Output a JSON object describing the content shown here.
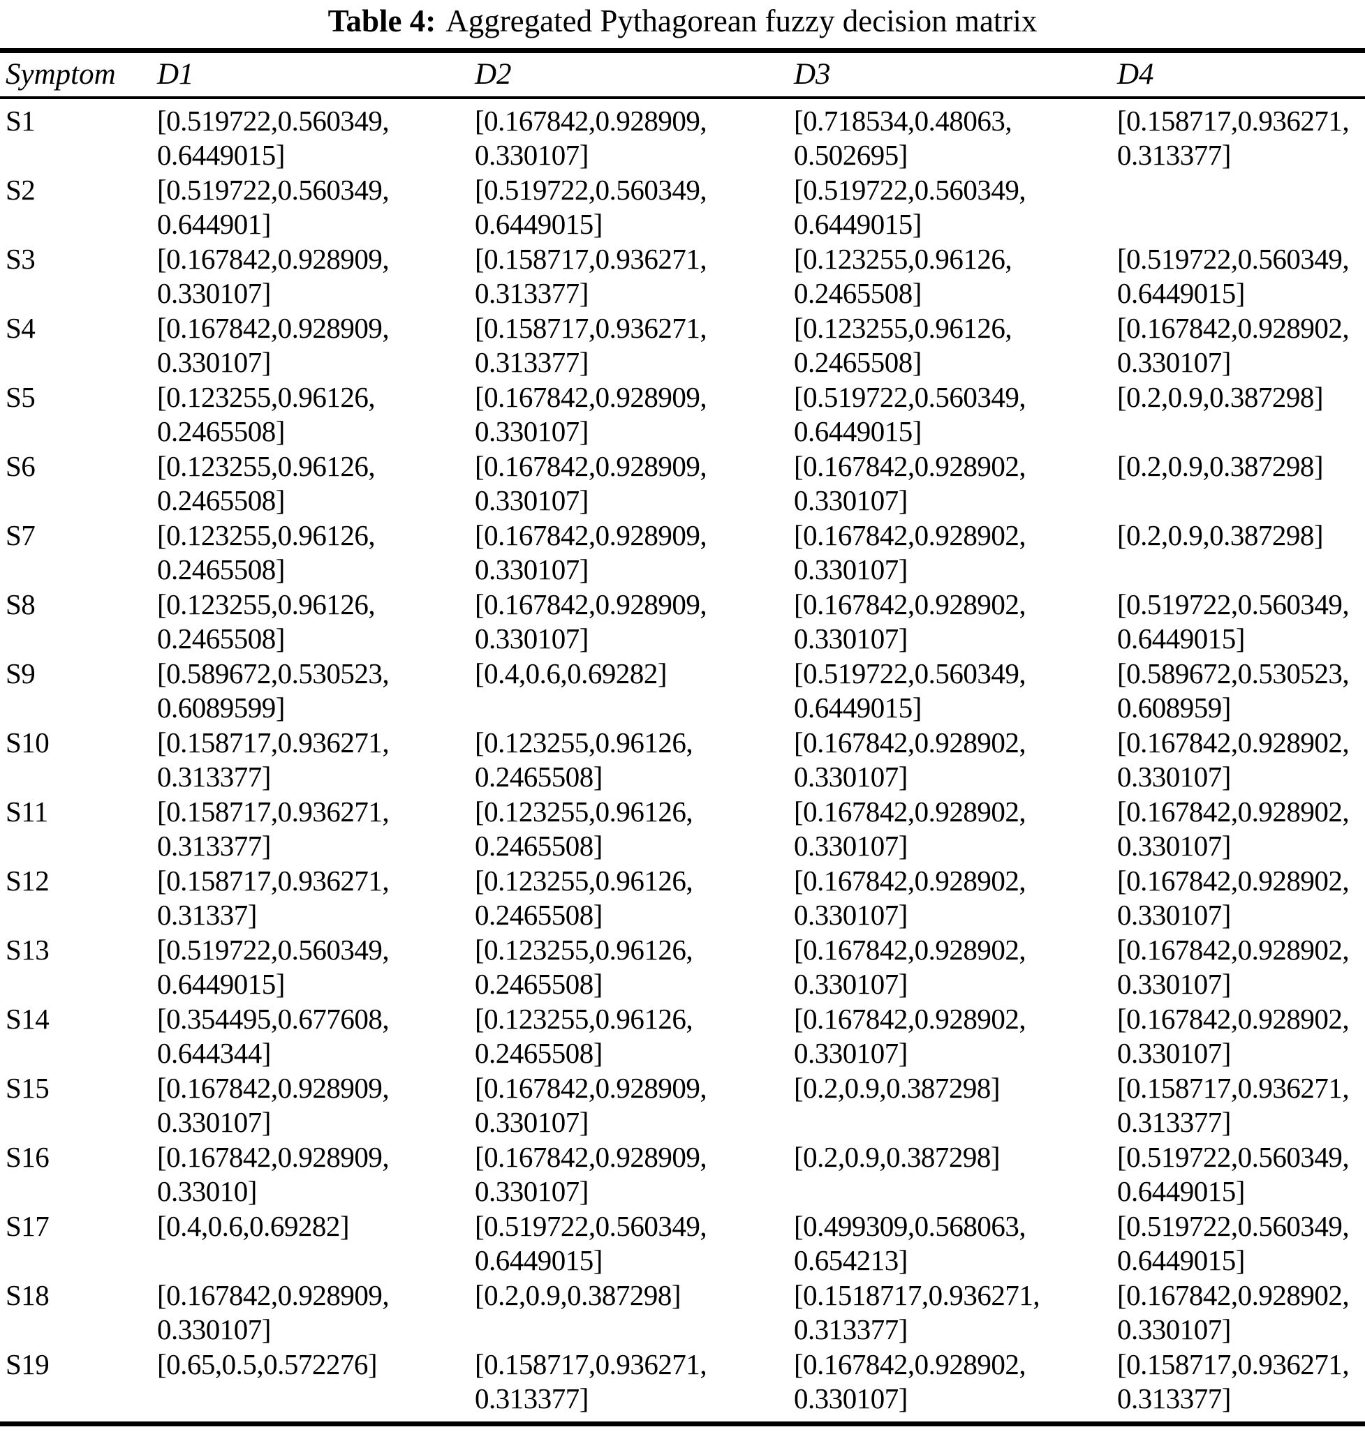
{
  "caption": {
    "label": "Table 4:",
    "text": "Aggregated Pythagorean fuzzy decision matrix"
  },
  "colors": {
    "text": "#000000",
    "background": "#ffffff",
    "rule": "#000000"
  },
  "table": {
    "columns": [
      "Symptom",
      "D1",
      "D2",
      "D3",
      "D4"
    ],
    "rows": [
      {
        "symptom": "S1",
        "d1": [
          "[0.519722,0.560349,",
          "0.6449015]"
        ],
        "d2": [
          "[0.167842,0.928909,",
          "0.330107]"
        ],
        "d3": [
          "[0.718534,0.48063,",
          "0.502695]"
        ],
        "d4": [
          "[0.158717,0.936271,",
          "0.313377]"
        ]
      },
      {
        "symptom": "S2",
        "d1": [
          "[0.519722,0.560349,",
          "0.644901]"
        ],
        "d2": [
          "[0.519722,0.560349,",
          "0.6449015]"
        ],
        "d3": [
          "[0.519722,0.560349,",
          "0.6449015]"
        ],
        "d4": []
      },
      {
        "symptom": "S3",
        "d1": [
          "[0.167842,0.928909,",
          "0.330107]"
        ],
        "d2": [
          "[0.158717,0.936271,",
          "0.313377]"
        ],
        "d3": [
          "[0.123255,0.96126,",
          "0.2465508]"
        ],
        "d4": [
          "[0.519722,0.560349,",
          "0.6449015]"
        ]
      },
      {
        "symptom": "S4",
        "d1": [
          "[0.167842,0.928909,",
          "0.330107]"
        ],
        "d2": [
          "[0.158717,0.936271,",
          "0.313377]"
        ],
        "d3": [
          "[0.123255,0.96126,",
          "0.2465508]"
        ],
        "d4": [
          "[0.167842,0.928902,",
          "0.330107]"
        ]
      },
      {
        "symptom": "S5",
        "d1": [
          "[0.123255,0.96126,",
          "0.2465508]"
        ],
        "d2": [
          "[0.167842,0.928909,",
          "0.330107]"
        ],
        "d3": [
          "[0.519722,0.560349,",
          "0.6449015]"
        ],
        "d4": [
          "[0.2,0.9,0.387298]"
        ]
      },
      {
        "symptom": "S6",
        "d1": [
          "[0.123255,0.96126,",
          "0.2465508]"
        ],
        "d2": [
          "[0.167842,0.928909,",
          "0.330107]"
        ],
        "d3": [
          "[0.167842,0.928902,",
          "0.330107]"
        ],
        "d4": [
          "[0.2,0.9,0.387298]"
        ]
      },
      {
        "symptom": "S7",
        "d1": [
          "[0.123255,0.96126,",
          "0.2465508]"
        ],
        "d2": [
          "[0.167842,0.928909,",
          "0.330107]"
        ],
        "d3": [
          "[0.167842,0.928902,",
          "0.330107]"
        ],
        "d4": [
          "[0.2,0.9,0.387298]"
        ]
      },
      {
        "symptom": "S8",
        "d1": [
          "[0.123255,0.96126,",
          "0.2465508]"
        ],
        "d2": [
          "[0.167842,0.928909,",
          "0.330107]"
        ],
        "d3": [
          "[0.167842,0.928902,",
          "0.330107]"
        ],
        "d4": [
          "[0.519722,0.560349,",
          "0.6449015]"
        ]
      },
      {
        "symptom": "S9",
        "d1": [
          "[0.589672,0.530523,",
          "0.6089599]"
        ],
        "d2": [
          "[0.4,0.6,0.69282]"
        ],
        "d3": [
          "[0.519722,0.560349,",
          "0.6449015]"
        ],
        "d4": [
          "[0.589672,0.530523,",
          "0.608959]"
        ]
      },
      {
        "symptom": "S10",
        "d1": [
          "[0.158717,0.936271,",
          "0.313377]"
        ],
        "d2": [
          "[0.123255,0.96126,",
          "0.2465508]"
        ],
        "d3": [
          "[0.167842,0.928902,",
          "0.330107]"
        ],
        "d4": [
          "[0.167842,0.928902,",
          "0.330107]"
        ]
      },
      {
        "symptom": "S11",
        "d1": [
          "[0.158717,0.936271,",
          "0.313377]"
        ],
        "d2": [
          "[0.123255,0.96126,",
          "0.2465508]"
        ],
        "d3": [
          "[0.167842,0.928902,",
          "0.330107]"
        ],
        "d4": [
          "[0.167842,0.928902,",
          "0.330107]"
        ]
      },
      {
        "symptom": "S12",
        "d1": [
          "[0.158717,0.936271,",
          "0.31337]"
        ],
        "d2": [
          "[0.123255,0.96126,",
          "0.2465508]"
        ],
        "d3": [
          "[0.167842,0.928902,",
          "0.330107]"
        ],
        "d4": [
          "[0.167842,0.928902,",
          "0.330107]"
        ]
      },
      {
        "symptom": "S13",
        "d1": [
          "[0.519722,0.560349,",
          "0.6449015]"
        ],
        "d2": [
          "[0.123255,0.96126,",
          "0.2465508]"
        ],
        "d3": [
          "[0.167842,0.928902,",
          "0.330107]"
        ],
        "d4": [
          "[0.167842,0.928902,",
          "0.330107]"
        ]
      },
      {
        "symptom": "S14",
        "d1": [
          "[0.354495,0.677608,",
          "0.644344]"
        ],
        "d2": [
          "[0.123255,0.96126,",
          "0.2465508]"
        ],
        "d3": [
          "[0.167842,0.928902,",
          "0.330107]"
        ],
        "d4": [
          "[0.167842,0.928902,",
          "0.330107]"
        ]
      },
      {
        "symptom": "S15",
        "d1": [
          "[0.167842,0.928909,",
          "0.330107]"
        ],
        "d2": [
          "[0.167842,0.928909,",
          "0.330107]"
        ],
        "d3": [
          "[0.2,0.9,0.387298]"
        ],
        "d4": [
          "[0.158717,0.936271,",
          "0.313377]"
        ]
      },
      {
        "symptom": "S16",
        "d1": [
          "[0.167842,0.928909,",
          "0.33010]"
        ],
        "d2": [
          "[0.167842,0.928909,",
          "0.330107]"
        ],
        "d3": [
          "[0.2,0.9,0.387298]"
        ],
        "d4": [
          "[0.519722,0.560349,",
          "0.6449015]"
        ]
      },
      {
        "symptom": "S17",
        "d1": [
          "[0.4,0.6,0.69282]"
        ],
        "d2": [
          "[0.519722,0.560349,",
          "0.6449015]"
        ],
        "d3": [
          "[0.499309,0.568063,",
          "0.654213]"
        ],
        "d4": [
          "[0.519722,0.560349,",
          "0.6449015]"
        ]
      },
      {
        "symptom": "S18",
        "d1": [
          "[0.167842,0.928909,",
          "0.330107]"
        ],
        "d2": [
          "[0.2,0.9,0.387298]"
        ],
        "d3": [
          "[0.1518717,0.936271,",
          "0.313377]"
        ],
        "d4": [
          "[0.167842,0.928902,",
          "0.330107]"
        ]
      },
      {
        "symptom": "S19",
        "d1": [
          "[0.65,0.5,0.572276]"
        ],
        "d2": [
          "[0.158717,0.936271,",
          "0.313377]"
        ],
        "d3": [
          "[0.167842,0.928902,",
          "0.330107]"
        ],
        "d4": [
          "[0.158717,0.936271,",
          "0.313377]"
        ]
      }
    ]
  }
}
